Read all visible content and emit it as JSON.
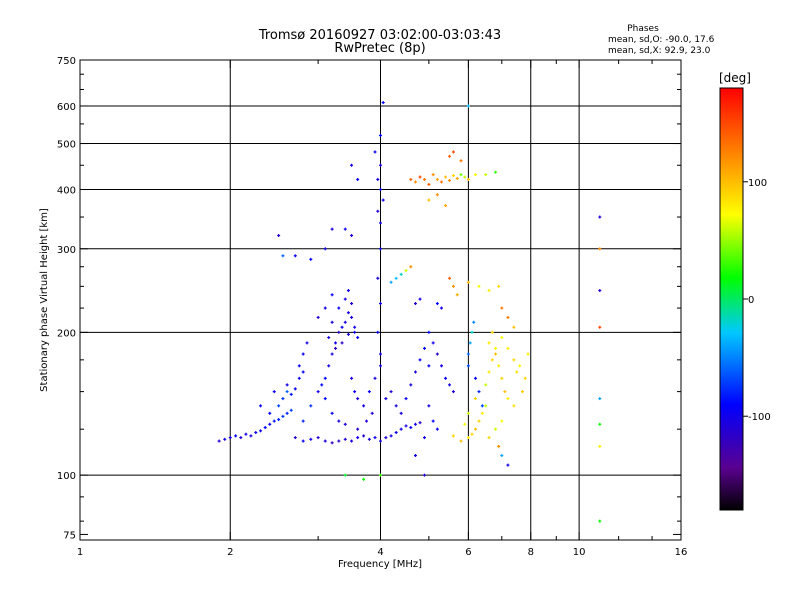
{
  "chart_data": {
    "type": "scatter",
    "title": "Tromsø 20160927 03:02:00-03:03:43",
    "subtitle": "RwPretec (8p)",
    "xlabel": "Frequency [MHz]",
    "ylabel": "Stationary phase Virtual Height [km]",
    "x_scale": "log",
    "y_scale": "log",
    "xlim": [
      1,
      16
    ],
    "ylim": [
      73,
      750
    ],
    "x_ticks": [
      1,
      2,
      4,
      6,
      8,
      10,
      16
    ],
    "x_ticklabels": [
      "1",
      "2",
      "4",
      "6",
      "8",
      "10",
      "16"
    ],
    "x_gridlines": [
      2,
      4,
      6,
      8,
      10
    ],
    "y_ticks": [
      75,
      100,
      200,
      300,
      400,
      500,
      600,
      750
    ],
    "y_ticklabels": [
      "75",
      "100",
      "200",
      "300",
      "400",
      "500",
      "600",
      "750"
    ],
    "y_gridlines": [
      100,
      200,
      300,
      400,
      500,
      600
    ],
    "grid": true,
    "legend_title": "Phases",
    "legend_lines": [
      "mean, sd,O: -90.0, 17.6",
      "mean, sd,X:  92.9, 23.0"
    ],
    "colorbar": {
      "label": "[deg]",
      "range": [
        -180,
        180
      ],
      "ticks": [
        100,
        0,
        -100
      ],
      "ticklabels": [
        "100",
        "0",
        "-100"
      ],
      "colormap": "rainbow",
      "colors": [
        "#000000",
        "#5a0090",
        "#0000ff",
        "#00c8ff",
        "#00ff00",
        "#ffff00",
        "#ff8000",
        "#ff0000"
      ]
    },
    "series": [
      {
        "marker_color_by": "phase_deg",
        "points": [
          [
            1.9,
            118,
            -110
          ],
          [
            1.95,
            119,
            -100
          ],
          [
            2.0,
            120,
            -105
          ],
          [
            2.05,
            121,
            -95
          ],
          [
            2.1,
            120,
            -110
          ],
          [
            2.15,
            122,
            -100
          ],
          [
            2.2,
            121,
            -105
          ],
          [
            2.25,
            123,
            -95
          ],
          [
            2.3,
            124,
            -100
          ],
          [
            2.35,
            126,
            -90
          ],
          [
            2.4,
            128,
            -95
          ],
          [
            2.45,
            130,
            -85
          ],
          [
            2.5,
            131,
            -80
          ],
          [
            2.55,
            133,
            -75
          ],
          [
            2.6,
            135,
            -80
          ],
          [
            2.65,
            137,
            -70
          ],
          [
            2.5,
            140,
            -70
          ],
          [
            2.55,
            145,
            -75
          ],
          [
            2.6,
            150,
            -60
          ],
          [
            2.65,
            148,
            -85
          ],
          [
            2.7,
            152,
            -90
          ],
          [
            2.75,
            160,
            -95
          ],
          [
            2.8,
            165,
            -90
          ],
          [
            2.7,
            120,
            -110
          ],
          [
            2.8,
            118,
            -95
          ],
          [
            2.9,
            119,
            -100
          ],
          [
            3.0,
            120,
            -110
          ],
          [
            3.1,
            118,
            -105
          ],
          [
            3.2,
            117,
            -120
          ],
          [
            3.3,
            118,
            -115
          ],
          [
            3.4,
            119,
            -110
          ],
          [
            3.5,
            118,
            -105
          ],
          [
            3.6,
            120,
            -100
          ],
          [
            3.7,
            121,
            -110
          ],
          [
            3.8,
            119,
            -105
          ],
          [
            3.9,
            120,
            -100
          ],
          [
            4.0,
            118,
            -105
          ],
          [
            4.1,
            120,
            -110
          ],
          [
            4.2,
            121,
            -100
          ],
          [
            4.3,
            123,
            -95
          ],
          [
            4.4,
            125,
            -100
          ],
          [
            4.5,
            127,
            -105
          ],
          [
            4.6,
            126,
            -95
          ],
          [
            4.7,
            128,
            -100
          ],
          [
            4.8,
            129,
            -110
          ],
          [
            3.0,
            150,
            -100
          ],
          [
            3.05,
            155,
            -95
          ],
          [
            3.1,
            160,
            -90
          ],
          [
            3.15,
            170,
            -100
          ],
          [
            3.2,
            180,
            -105
          ],
          [
            3.25,
            190,
            -100
          ],
          [
            3.3,
            200,
            -110
          ],
          [
            3.35,
            205,
            -95
          ],
          [
            3.4,
            210,
            -100
          ],
          [
            3.45,
            220,
            -105
          ],
          [
            3.5,
            215,
            -110
          ],
          [
            3.55,
            200,
            -100
          ],
          [
            3.6,
            195,
            -95
          ],
          [
            3.15,
            195,
            -105
          ],
          [
            3.2,
            210,
            -100
          ],
          [
            3.3,
            225,
            -95
          ],
          [
            3.4,
            235,
            -105
          ],
          [
            3.45,
            245,
            -100
          ],
          [
            3.5,
            230,
            -110
          ],
          [
            3.25,
            185,
            -120
          ],
          [
            3.35,
            190,
            -115
          ],
          [
            3.45,
            198,
            -105
          ],
          [
            3.55,
            205,
            -100
          ],
          [
            3.0,
            215,
            -110
          ],
          [
            3.1,
            225,
            -100
          ],
          [
            3.2,
            240,
            -95
          ],
          [
            3.5,
            160,
            -105
          ],
          [
            3.55,
            150,
            -100
          ],
          [
            3.6,
            145,
            -110
          ],
          [
            3.7,
            140,
            -100
          ],
          [
            3.8,
            150,
            -95
          ],
          [
            3.9,
            160,
            -105
          ],
          [
            4.0,
            170,
            -100
          ],
          [
            3.75,
            130,
            -110
          ],
          [
            3.85,
            135,
            -105
          ],
          [
            4.1,
            145,
            -100
          ],
          [
            4.2,
            150,
            -110
          ],
          [
            4.3,
            140,
            -105
          ],
          [
            4.4,
            135,
            -100
          ],
          [
            4.5,
            145,
            -95
          ],
          [
            4.6,
            155,
            -100
          ],
          [
            4.7,
            165,
            -105
          ],
          [
            4.8,
            175,
            -95
          ],
          [
            4.9,
            185,
            -90
          ],
          [
            5.0,
            170,
            -95
          ],
          [
            4.0,
            180,
            -100
          ],
          [
            3.95,
            200,
            -95
          ],
          [
            4.0,
            230,
            -100
          ],
          [
            3.95,
            260,
            -105
          ],
          [
            4.0,
            300,
            -95
          ],
          [
            4.0,
            340,
            -100
          ],
          [
            3.95,
            360,
            -110
          ],
          [
            4.05,
            380,
            -100
          ],
          [
            4.0,
            400,
            -95
          ],
          [
            3.95,
            420,
            -100
          ],
          [
            4.0,
            450,
            -105
          ],
          [
            3.9,
            480,
            -95
          ],
          [
            4.0,
            520,
            -90
          ],
          [
            4.05,
            610,
            -90
          ],
          [
            3.5,
            450,
            -100
          ],
          [
            3.6,
            420,
            -95
          ],
          [
            3.2,
            330,
            -105
          ],
          [
            3.4,
            330,
            -100
          ],
          [
            3.5,
            320,
            -110
          ],
          [
            2.5,
            320,
            -110
          ],
          [
            2.55,
            290,
            -60
          ],
          [
            2.7,
            290,
            -95
          ],
          [
            2.9,
            285,
            -90
          ],
          [
            3.1,
            300,
            -100
          ],
          [
            2.3,
            140,
            -95
          ],
          [
            2.4,
            135,
            -90
          ],
          [
            2.45,
            150,
            -95
          ],
          [
            2.6,
            155,
            -100
          ],
          [
            2.75,
            170,
            -95
          ],
          [
            2.8,
            180,
            -90
          ],
          [
            2.85,
            190,
            -100
          ],
          [
            4.3,
            260,
            -30
          ],
          [
            4.4,
            265,
            -20
          ],
          [
            4.5,
            270,
            60
          ],
          [
            4.6,
            275,
            120
          ],
          [
            4.2,
            255,
            -40
          ],
          [
            4.7,
            230,
            -110
          ],
          [
            4.8,
            235,
            -100
          ],
          [
            5.2,
            230,
            -90
          ],
          [
            5.3,
            225,
            -100
          ],
          [
            4.6,
            420,
            140
          ],
          [
            4.7,
            415,
            120
          ],
          [
            4.8,
            425,
            150
          ],
          [
            4.9,
            420,
            130
          ],
          [
            5.0,
            410,
            140
          ],
          [
            5.1,
            430,
            120
          ],
          [
            5.2,
            420,
            110
          ],
          [
            5.3,
            415,
            130
          ],
          [
            5.4,
            425,
            100
          ],
          [
            5.5,
            418,
            120
          ],
          [
            5.6,
            428,
            90
          ],
          [
            5.7,
            422,
            110
          ],
          [
            5.8,
            430,
            40
          ],
          [
            5.9,
            425,
            60
          ],
          [
            6.0,
            420,
            100
          ],
          [
            6.2,
            430,
            70
          ],
          [
            6.5,
            430,
            60
          ],
          [
            6.8,
            435,
            30
          ],
          [
            5.0,
            380,
            100
          ],
          [
            5.2,
            390,
            120
          ],
          [
            5.4,
            370,
            110
          ],
          [
            5.6,
            480,
            150
          ],
          [
            5.5,
            470,
            140
          ],
          [
            5.8,
            460,
            130
          ],
          [
            6.0,
            600,
            -30
          ],
          [
            6.0,
            180,
            -60
          ],
          [
            6.05,
            190,
            -40
          ],
          [
            6.1,
            200,
            -20
          ],
          [
            6.15,
            210,
            -50
          ],
          [
            6.0,
            170,
            -70
          ],
          [
            6.2,
            160,
            -90
          ],
          [
            6.3,
            150,
            -80
          ],
          [
            6.4,
            140,
            -70
          ],
          [
            6.5,
            155,
            60
          ],
          [
            6.6,
            165,
            80
          ],
          [
            6.7,
            175,
            90
          ],
          [
            6.8,
            185,
            70
          ],
          [
            6.9,
            170,
            80
          ],
          [
            7.0,
            160,
            90
          ],
          [
            7.1,
            150,
            100
          ],
          [
            7.2,
            145,
            80
          ],
          [
            6.5,
            140,
            60
          ],
          [
            6.4,
            135,
            80
          ],
          [
            6.3,
            130,
            90
          ],
          [
            6.2,
            125,
            100
          ],
          [
            6.1,
            122,
            90
          ],
          [
            6.0,
            120,
            80
          ],
          [
            5.8,
            118,
            100
          ],
          [
            5.6,
            121,
            90
          ],
          [
            5.9,
            128,
            70
          ],
          [
            6.0,
            135,
            60
          ],
          [
            6.2,
            145,
            90
          ],
          [
            6.6,
            190,
            80
          ],
          [
            6.7,
            200,
            90
          ],
          [
            6.8,
            180,
            100
          ],
          [
            7.0,
            195,
            70
          ],
          [
            7.2,
            185,
            80
          ],
          [
            7.4,
            175,
            90
          ],
          [
            7.5,
            165,
            85
          ],
          [
            7.6,
            170,
            75
          ],
          [
            7.8,
            160,
            90
          ],
          [
            7.9,
            180,
            80
          ],
          [
            7.7,
            150,
            95
          ],
          [
            7.4,
            140,
            85
          ],
          [
            7.0,
            130,
            70
          ],
          [
            6.8,
            125,
            60
          ],
          [
            6.6,
            120,
            90
          ],
          [
            6.9,
            115,
            120
          ],
          [
            7.0,
            110,
            -40
          ],
          [
            7.2,
            105,
            -100
          ],
          [
            7.0,
            225,
            130
          ],
          [
            7.2,
            215,
            130
          ],
          [
            7.4,
            205,
            100
          ],
          [
            5.6,
            250,
            120
          ],
          [
            5.5,
            260,
            140
          ],
          [
            5.7,
            240,
            110
          ],
          [
            6.0,
            255,
            100
          ],
          [
            6.3,
            250,
            70
          ],
          [
            6.6,
            245,
            80
          ],
          [
            6.9,
            250,
            90
          ],
          [
            5.0,
            200,
            -90
          ],
          [
            5.1,
            190,
            -100
          ],
          [
            5.2,
            180,
            -110
          ],
          [
            5.3,
            170,
            -100
          ],
          [
            5.4,
            160,
            -95
          ],
          [
            5.5,
            155,
            -105
          ],
          [
            5.6,
            150,
            -110
          ],
          [
            5.0,
            140,
            -100
          ],
          [
            5.1,
            130,
            -90
          ],
          [
            5.2,
            125,
            -95
          ],
          [
            4.9,
            120,
            -100
          ],
          [
            4.7,
            110,
            -100
          ],
          [
            4.9,
            100,
            -110
          ],
          [
            3.4,
            100,
            10
          ],
          [
            3.7,
            98,
            20
          ],
          [
            4.0,
            100,
            30
          ],
          [
            2.8,
            130,
            -80
          ],
          [
            2.9,
            140,
            -75
          ],
          [
            3.1,
            145,
            -90
          ],
          [
            3.2,
            135,
            -95
          ],
          [
            3.3,
            130,
            -100
          ],
          [
            3.4,
            128,
            -105
          ],
          [
            3.6,
            125,
            -110
          ],
          [
            11.0,
            350,
            -110
          ],
          [
            11.0,
            300,
            120
          ],
          [
            11.0,
            245,
            -110
          ],
          [
            11.0,
            205,
            150
          ],
          [
            11.0,
            145,
            -40
          ],
          [
            11.0,
            128,
            20
          ],
          [
            11.0,
            115,
            80
          ],
          [
            11.0,
            80,
            20
          ]
        ]
      }
    ]
  }
}
